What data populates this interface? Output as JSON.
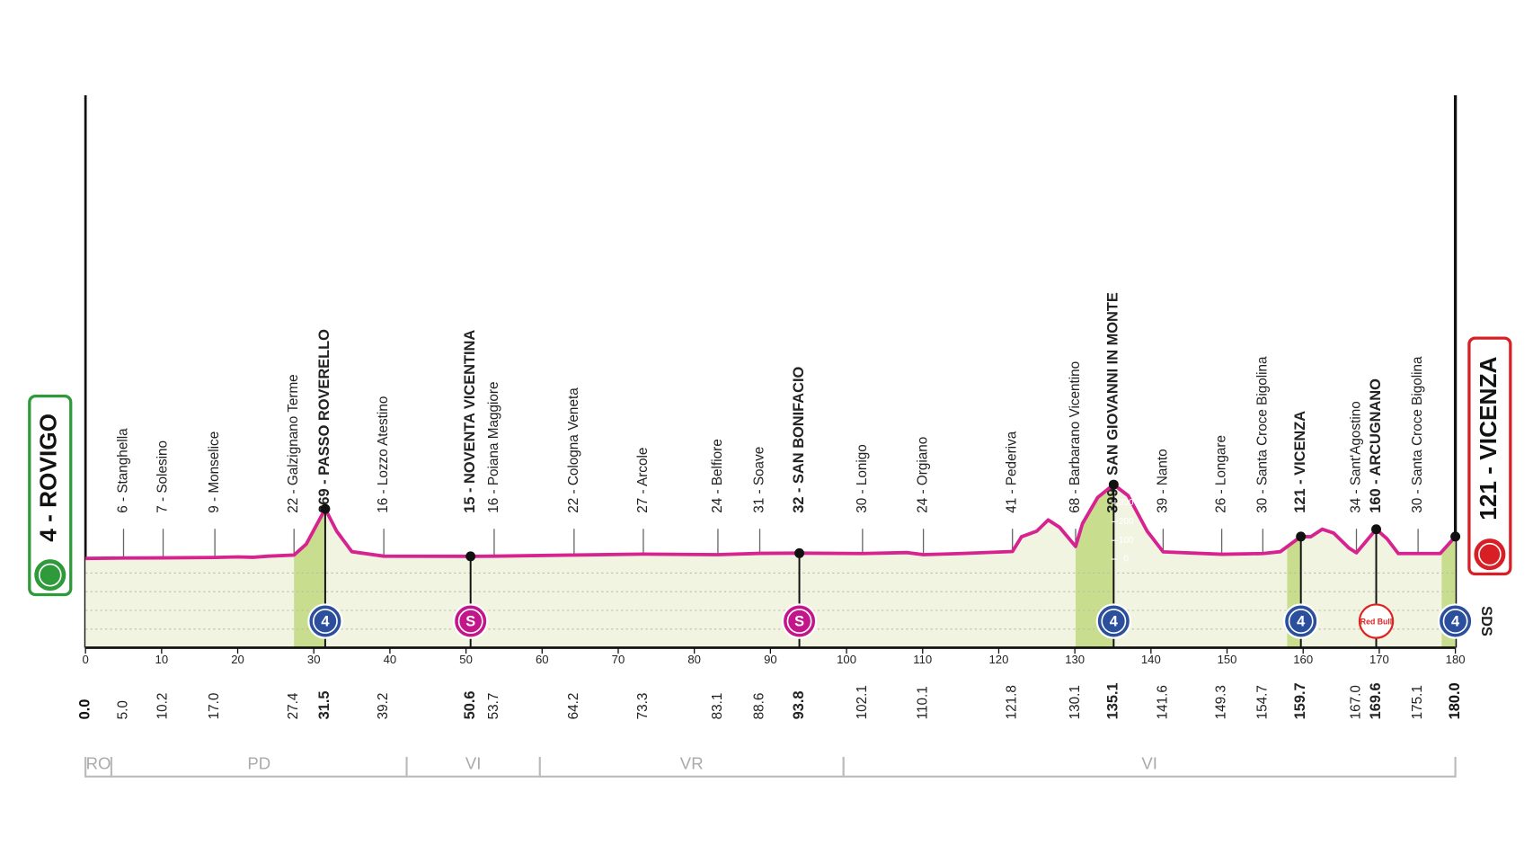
{
  "chart_data": {
    "type": "area",
    "start": {
      "name": "4 - ROVIGO",
      "km": {
        "value": 0,
        "label": "0.0"
      }
    },
    "finish": {
      "name": "121 - VICENZA",
      "km": {
        "value": 180,
        "label": "180.0"
      }
    },
    "xlim": [
      0,
      180
    ],
    "xticks": [
      0,
      10,
      20,
      30,
      40,
      50,
      60,
      70,
      80,
      90,
      100,
      110,
      120,
      130,
      140,
      150,
      160,
      170,
      180
    ],
    "ylim": [
      -474,
      1414
    ],
    "yticks": [
      0,
      100,
      200,
      300
    ],
    "color": "#d6238f",
    "fill": "#f2f4e2",
    "climb_color": "#c9dd8f",
    "profile": {
      "km": [
        0,
        5,
        10.2,
        17,
        20,
        22,
        24,
        27.4,
        29,
        31.5,
        33,
        35,
        39.2,
        50.6,
        53.7,
        64.2,
        73.3,
        83.1,
        88.6,
        93.8,
        102.1,
        108,
        110.1,
        115,
        121.8,
        123,
        125,
        126.5,
        128,
        130.1,
        131,
        133,
        135.1,
        137,
        139.5,
        141.6,
        149.3,
        154.7,
        157,
        159.7,
        161,
        162.5,
        164,
        166,
        167,
        169.6,
        171,
        172.5,
        175.1,
        178,
        180
      ],
      "elevation": [
        4,
        6,
        7,
        9,
        12,
        10,
        16,
        22,
        80,
        269,
        150,
        40,
        16,
        15,
        16,
        22,
        27,
        24,
        31,
        32,
        30,
        35,
        24,
        30,
        41,
        120,
        150,
        210,
        170,
        68,
        190,
        330,
        399,
        340,
        150,
        39,
        26,
        30,
        40,
        121,
        120,
        160,
        140,
        60,
        34,
        160,
        110,
        30,
        30,
        30,
        121
      ]
    },
    "waypoints": [
      {
        "name": "6 - Stanghella",
        "km": {
          "value": 5,
          "label": "5.0"
        },
        "bold": false
      },
      {
        "name": "7 - Solesino",
        "km": {
          "value": 10.2,
          "label": "10.2"
        },
        "bold": false
      },
      {
        "name": "9 - Monselice",
        "km": {
          "value": 17,
          "label": "17.0"
        },
        "bold": false
      },
      {
        "name": "22 - Galzignano Terme",
        "km": {
          "value": 27.4,
          "label": "27.4"
        },
        "bold": false
      },
      {
        "name": "269 - PASSO ROVERELLO",
        "km": {
          "value": 31.5,
          "label": "31.5"
        },
        "bold": true
      },
      {
        "name": "16 - Lozzo Atestino",
        "km": {
          "value": 39.2,
          "label": "39.2"
        },
        "bold": false
      },
      {
        "name": "15 - NOVENTA VICENTINA",
        "km": {
          "value": 50.6,
          "label": "50.6"
        },
        "bold": true
      },
      {
        "name": "16 - Poiana Maggiore",
        "km": {
          "value": 53.7,
          "label": "53.7"
        },
        "bold": false
      },
      {
        "name": "22 - Cologna Veneta",
        "km": {
          "value": 64.2,
          "label": "64.2"
        },
        "bold": false
      },
      {
        "name": "27 - Arcole",
        "km": {
          "value": 73.3,
          "label": "73.3"
        },
        "bold": false
      },
      {
        "name": "24 - Belfiore",
        "km": {
          "value": 83.1,
          "label": "83.1"
        },
        "bold": false
      },
      {
        "name": "31 - Soave",
        "km": {
          "value": 88.6,
          "label": "88.6"
        },
        "bold": false
      },
      {
        "name": "32 - SAN BONIFACIO",
        "km": {
          "value": 93.8,
          "label": "93.8"
        },
        "bold": true
      },
      {
        "name": "30 - Lonigo",
        "km": {
          "value": 102.1,
          "label": "102.1"
        },
        "bold": false
      },
      {
        "name": "24 - Orgiano",
        "km": {
          "value": 110.1,
          "label": "110.1"
        },
        "bold": false
      },
      {
        "name": "41 - Pederiva",
        "km": {
          "value": 121.8,
          "label": "121.8"
        },
        "bold": false
      },
      {
        "name": "68 - Barbarano Vicentino",
        "km": {
          "value": 130.1,
          "label": "130.1"
        },
        "bold": false
      },
      {
        "name": "399 - SAN GIOVANNI IN MONTE",
        "km": {
          "value": 135.1,
          "label": "135.1"
        },
        "bold": true
      },
      {
        "name": "39 - Nanto",
        "km": {
          "value": 141.6,
          "label": "141.6"
        },
        "bold": false
      },
      {
        "name": "26 - Longare",
        "km": {
          "value": 149.3,
          "label": "149.3"
        },
        "bold": false
      },
      {
        "name": "30 - Santa Croce Bigolina",
        "km": {
          "value": 154.7,
          "label": "154.7"
        },
        "bold": false
      },
      {
        "name": "121 - VICENZA",
        "km": {
          "value": 159.7,
          "label": "159.7"
        },
        "bold": true
      },
      {
        "name": "34 - Sant'Agostino",
        "km": {
          "value": 167,
          "label": "167.0"
        },
        "bold": false
      },
      {
        "name": "160 - ARCUGNANO",
        "km": {
          "value": 169.6,
          "label": "169.6"
        },
        "bold": true
      },
      {
        "name": "30 - Santa Croce Bigolina",
        "km": {
          "value": 175.1,
          "label": "175.1"
        },
        "bold": false
      }
    ],
    "climb_zones": [
      {
        "from": 27.4,
        "to": 31.5
      },
      {
        "from": 130.1,
        "to": 135.1
      },
      {
        "from": 157.9,
        "to": 159.7
      },
      {
        "from": 178.2,
        "to": 180
      }
    ],
    "icons": [
      {
        "km": 31.5,
        "kind": "climb",
        "label": "4"
      },
      {
        "km": 50.6,
        "kind": "sprint",
        "label": "S"
      },
      {
        "km": 93.8,
        "kind": "sprint",
        "label": "S"
      },
      {
        "km": 135.1,
        "kind": "climb",
        "label": "4"
      },
      {
        "km": 159.7,
        "kind": "climb",
        "label": "4"
      },
      {
        "km": 169.6,
        "kind": "sponsor",
        "label": "Red Bull"
      },
      {
        "km": 180,
        "kind": "climb",
        "label": "4"
      }
    ],
    "sds": "SDS",
    "provinces": [
      {
        "name": "RO",
        "from": 0,
        "to": 3.4
      },
      {
        "name": "PD",
        "from": 3.4,
        "to": 42.2
      },
      {
        "name": "VI",
        "from": 42.2,
        "to": 59.7
      },
      {
        "name": "VR",
        "from": 59.7,
        "to": 99.6
      },
      {
        "name": "VI",
        "from": 99.6,
        "to": 180
      }
    ]
  }
}
